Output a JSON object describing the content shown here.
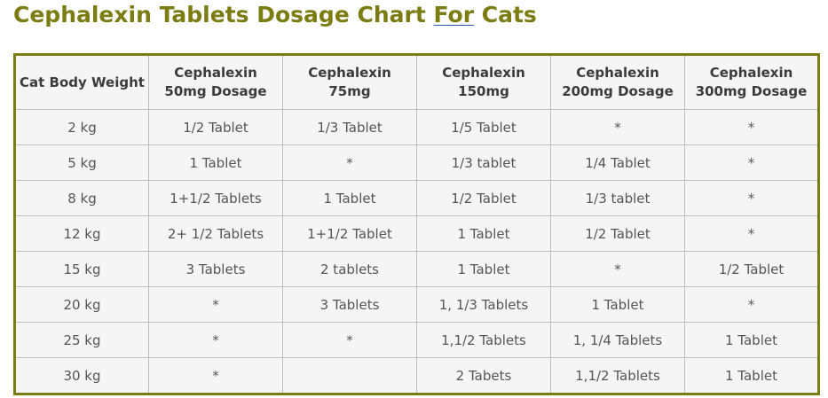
{
  "title": {
    "before": "Cephalexin Tablets Dosage Chart ",
    "link": "For",
    "after": " Cats"
  },
  "table": {
    "headers": [
      "Cat Body Weight",
      "Cephalexin 50mg Dosage",
      "Cephalexin 75mg",
      "Cephalexin 150mg",
      "Cephalexin 200mg Dosage",
      "Cephalexin 300mg Dosage"
    ],
    "rows": [
      [
        "2 kg",
        "1/2 Tablet",
        "1/3 Tablet",
        "1/5 Tablet",
        "*",
        "*"
      ],
      [
        "5 kg",
        "1 Tablet",
        "*",
        "1/3 tablet",
        "1/4 Tablet",
        "*"
      ],
      [
        "8 kg",
        "1+1/2 Tablets",
        "1 Tablet",
        "1/2 Tablet",
        "1/3 tablet",
        "*"
      ],
      [
        "12 kg",
        "2+ 1/2 Tablets",
        "1+1/2 Tablet",
        "1 Tablet",
        "1/2 Tablet",
        "*"
      ],
      [
        "15 kg",
        "3 Tablets",
        "2 tablets",
        "1 Tablet",
        "*",
        "1/2 Tablet"
      ],
      [
        "20 kg",
        "*",
        "3 Tablets",
        "1, 1/3 Tablets",
        "1 Tablet",
        "*"
      ],
      [
        "25 kg",
        "*",
        "*",
        "1,1/2 Tablets",
        "1, 1/4 Tablets",
        "1 Tablet"
      ],
      [
        "30 kg",
        "*",
        "",
        "2 Tabets",
        "1,1/2 Tablets",
        "1 Tablet"
      ]
    ]
  },
  "colors": {
    "title": "#7b7d12",
    "table_border": "#7b7d12",
    "link_underline": "#2b55b7",
    "header_text": "#3b3b3b",
    "cell_text": "#555555",
    "cell_background": "#f5f5f5"
  }
}
